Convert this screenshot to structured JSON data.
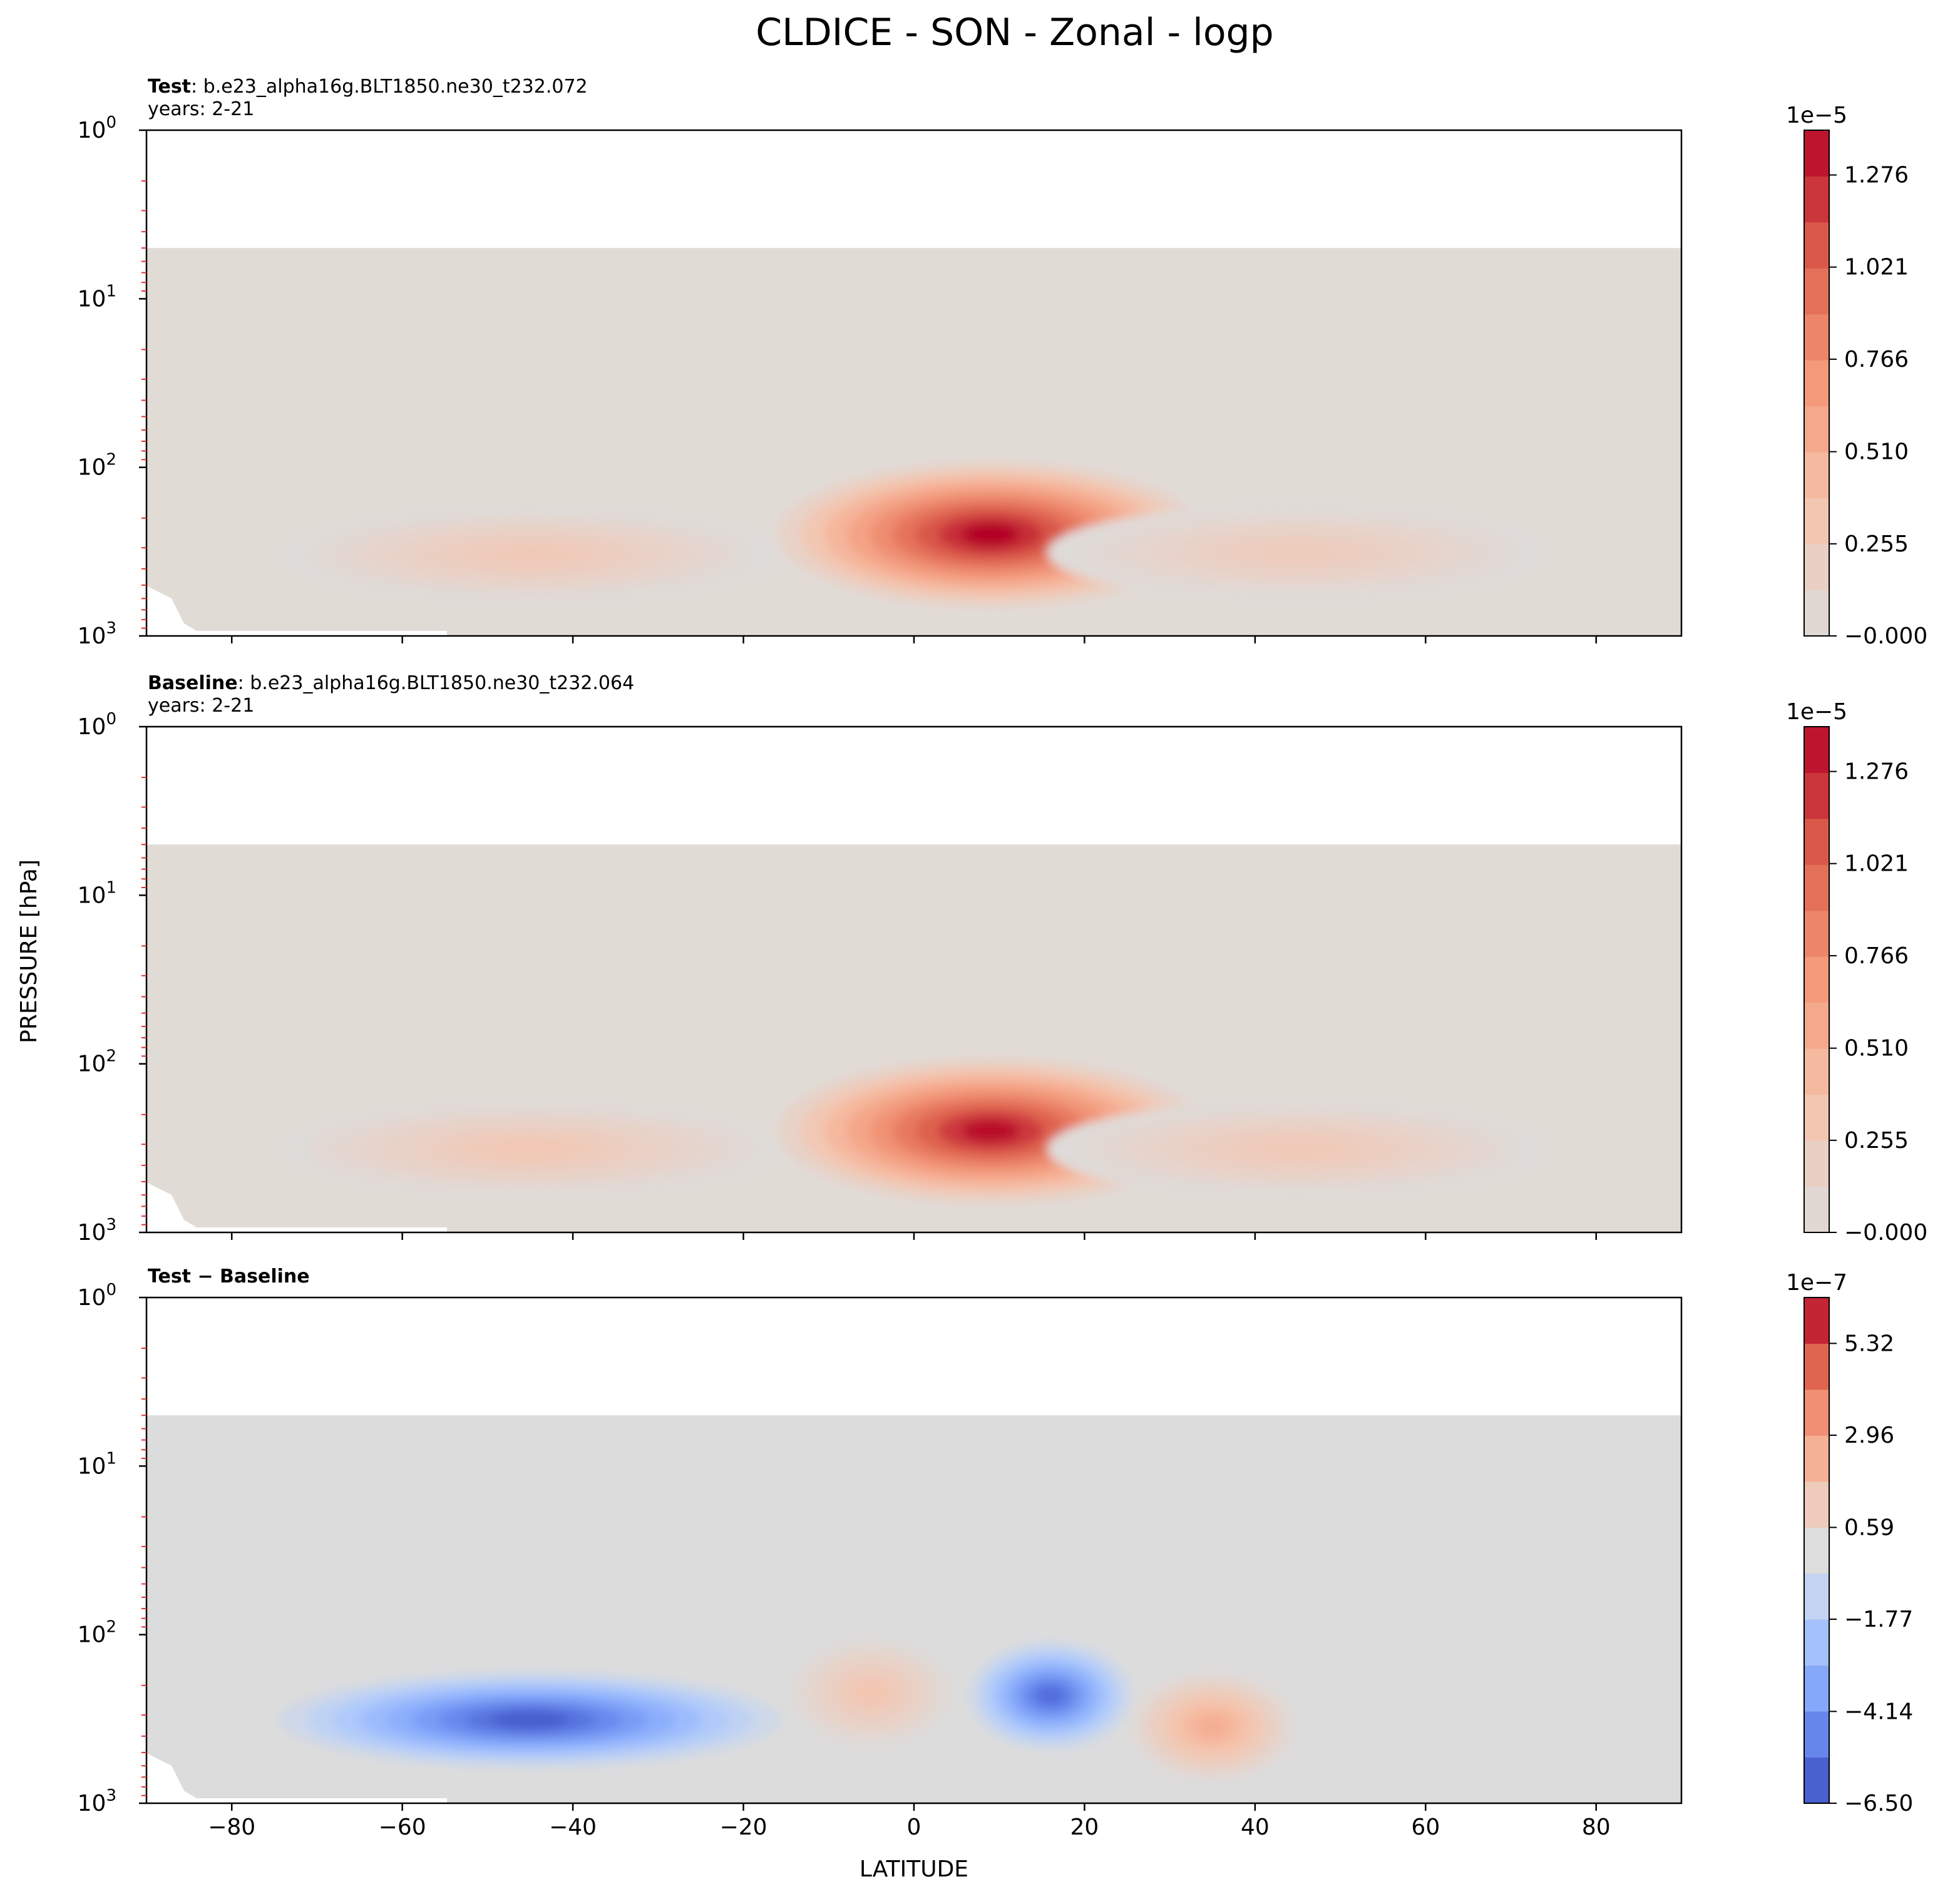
{
  "figure": {
    "suptitle": "CLDICE - SON - Zonal - logp",
    "ylabel": "PRESSURE [hPa]",
    "xlabel": "LATITUDE"
  },
  "chart_data": [
    {
      "type": "contour",
      "panel": "test",
      "title_bold": "Test",
      "title_rest": ": b.e23_alpha16g.BLT1850.ne30_t232.072",
      "subtitle": "years: 2-21",
      "x_range": [
        -90,
        90
      ],
      "y_scale": "log",
      "y_range_hPa": [
        1000,
        1
      ],
      "y_tick_labels": [
        "10^0",
        "10^1",
        "10^2",
        "10^3"
      ],
      "x_ticks": [
        -80,
        -60,
        -40,
        -20,
        0,
        20,
        40,
        60,
        80
      ],
      "x_tick_labels_visible": false,
      "data_top_hPa": 5,
      "background_level": 0.0,
      "colorbar": {
        "cmap": "coolwarm",
        "exponent_label": "1e−5",
        "tick_labels": [
          "−0.000",
          "0.255",
          "0.510",
          "0.766",
          "1.021",
          "1.276"
        ],
        "tick_values": [
          0.0,
          0.255,
          0.51,
          0.766,
          1.021,
          1.276
        ],
        "range": [
          0.0,
          1.4
        ],
        "n_levels": 11
      },
      "features": [
        {
          "label": "tropical maximum",
          "lat": 9,
          "p_hPa": 250,
          "value": 1.4
        },
        {
          "label": "SH midlatitude band",
          "lat": -45,
          "p_hPa": 330,
          "value": 0.28
        },
        {
          "label": "NH midlatitude band",
          "lat": 45,
          "p_hPa": 320,
          "value": 0.25
        }
      ]
    },
    {
      "type": "contour",
      "panel": "baseline",
      "title_bold": "Baseline",
      "title_rest": ": b.e23_alpha16g.BLT1850.ne30_t232.064",
      "subtitle": "years: 2-21",
      "x_range": [
        -90,
        90
      ],
      "y_scale": "log",
      "y_range_hPa": [
        1000,
        1
      ],
      "y_tick_labels": [
        "10^0",
        "10^1",
        "10^2",
        "10^3"
      ],
      "x_ticks": [
        -80,
        -60,
        -40,
        -20,
        0,
        20,
        40,
        60,
        80
      ],
      "x_tick_labels_visible": false,
      "data_top_hPa": 5,
      "background_level": 0.0,
      "colorbar": {
        "cmap": "coolwarm",
        "exponent_label": "1e−5",
        "tick_labels": [
          "−0.000",
          "0.255",
          "0.510",
          "0.766",
          "1.021",
          "1.276"
        ],
        "tick_values": [
          0.0,
          0.255,
          0.51,
          0.766,
          1.021,
          1.276
        ],
        "range": [
          0.0,
          1.4
        ],
        "n_levels": 11
      },
      "features": [
        {
          "label": "tropical maximum",
          "lat": 9,
          "p_hPa": 250,
          "value": 1.35
        },
        {
          "label": "SH midlatitude band",
          "lat": -45,
          "p_hPa": 320,
          "value": 0.3
        },
        {
          "label": "NH midlatitude band",
          "lat": 45,
          "p_hPa": 320,
          "value": 0.28
        }
      ]
    },
    {
      "type": "contour",
      "panel": "difference",
      "title_bold": "Test − Baseline",
      "x_range": [
        -90,
        90
      ],
      "y_scale": "log",
      "y_range_hPa": [
        1000,
        1
      ],
      "y_tick_labels": [
        "10^0",
        "10^1",
        "10^2",
        "10^3"
      ],
      "x_ticks": [
        -80,
        -60,
        -40,
        -20,
        0,
        20,
        40,
        60,
        80
      ],
      "x_tick_labels": [
        "−80",
        "−60",
        "−40",
        "−20",
        "0",
        "20",
        "40",
        "60",
        "80"
      ],
      "x_tick_labels_visible": true,
      "data_top_hPa": 5,
      "background_level": 0.0,
      "colorbar": {
        "cmap": "coolwarm",
        "exponent_label": "1e−7",
        "tick_labels": [
          "−6.50",
          "−4.14",
          "−1.77",
          "0.59",
          "2.96",
          "5.32"
        ],
        "tick_values": [
          -6.5,
          -4.14,
          -1.77,
          0.59,
          2.96,
          5.32
        ],
        "range": [
          -6.5,
          6.5
        ],
        "n_levels": 11
      },
      "features": [
        {
          "label": "SH negative band",
          "lat": -45,
          "p_hPa": 320,
          "value": -6.0
        },
        {
          "label": "tropical positive",
          "lat": -5,
          "p_hPa": 220,
          "value": 1.5
        },
        {
          "label": "NH subtropical negative",
          "lat": 16,
          "p_hPa": 230,
          "value": -5.5
        },
        {
          "label": "NH midlatitude positive",
          "lat": 35,
          "p_hPa": 350,
          "value": 2.5
        }
      ]
    }
  ]
}
